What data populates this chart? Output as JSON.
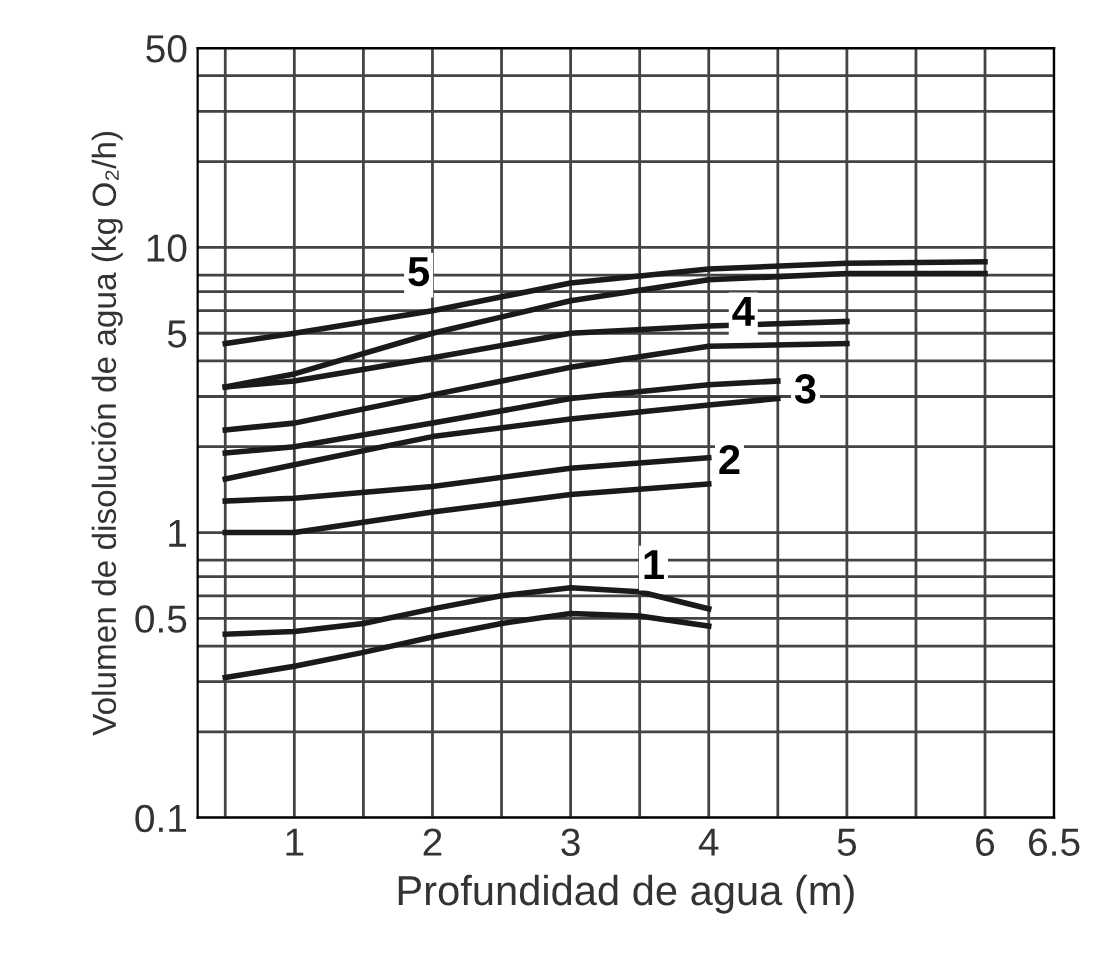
{
  "chart_data": {
    "type": "line",
    "xlabel": "Profundidad de agua (m)",
    "ylabel": "Volumen de disolución de agua (kg O₂/h)",
    "log": "y",
    "xlim": [
      0.3,
      6.5
    ],
    "ylim": [
      0.1,
      50
    ],
    "xticks": [
      {
        "value": 0.5,
        "label": null
      },
      1,
      {
        "value": 1.5,
        "label": null
      },
      2,
      {
        "value": 2.5,
        "label": null
      },
      3,
      {
        "value": 3.5,
        "label": null
      },
      4,
      {
        "value": 4.5,
        "label": null
      },
      5,
      {
        "value": 5.5,
        "label": null
      },
      6,
      6.5
    ],
    "yticks": [
      0.1,
      {
        "value": 0.2,
        "label": null
      },
      {
        "value": 0.3,
        "label": null
      },
      {
        "value": 0.4,
        "label": null
      },
      0.5,
      {
        "value": 0.6,
        "label": null
      },
      {
        "value": 0.7,
        "label": null
      },
      {
        "value": 0.8,
        "label": null
      },
      1,
      {
        "value": 2,
        "label": null
      },
      {
        "value": 3,
        "label": null
      },
      {
        "value": 4,
        "label": null
      },
      5,
      {
        "value": 6,
        "label": null
      },
      {
        "value": 7,
        "label": null
      },
      {
        "value": 8,
        "label": null
      },
      10,
      {
        "value": 20,
        "label": null
      },
      {
        "value": 30,
        "label": null
      },
      {
        "value": 40,
        "label": null
      },
      50
    ],
    "grid": true,
    "marker": "none",
    "line_style": "solid",
    "series": [
      {
        "color": "#1a1a1a",
        "x": [
          0.5,
          1,
          1.5,
          2,
          2.5,
          3,
          3.5,
          4
        ],
        "values": [
          0.31,
          0.34,
          0.38,
          0.43,
          0.48,
          0.52,
          0.51,
          0.47
        ]
      },
      {
        "color": "#1a1a1a",
        "x": [
          0.5,
          1,
          1.5,
          2,
          2.5,
          3,
          3.5,
          4
        ],
        "values": [
          0.44,
          0.45,
          0.48,
          0.54,
          0.6,
          0.64,
          0.62,
          0.54
        ]
      },
      {
        "color": "#1a1a1a",
        "x": [
          0.5,
          1,
          2,
          3,
          4
        ],
        "values": [
          1.0,
          1.0,
          1.18,
          1.36,
          1.48
        ]
      },
      {
        "color": "#1a1a1a",
        "x": [
          0.5,
          1,
          2,
          3,
          4
        ],
        "values": [
          1.29,
          1.32,
          1.45,
          1.68,
          1.83
        ]
      },
      {
        "color": "#1a1a1a",
        "x": [
          0.5,
          1,
          2,
          3,
          4,
          4.5
        ],
        "values": [
          1.54,
          1.73,
          2.17,
          2.5,
          2.8,
          2.95
        ]
      },
      {
        "color": "#1a1a1a",
        "x": [
          0.5,
          1,
          2,
          3,
          4,
          4.5
        ],
        "values": [
          1.9,
          2.0,
          2.42,
          2.95,
          3.3,
          3.4
        ]
      },
      {
        "color": "#1a1a1a",
        "x": [
          0.5,
          1,
          2,
          3,
          4,
          5
        ],
        "values": [
          2.29,
          2.42,
          3.04,
          3.8,
          4.5,
          4.6
        ]
      },
      {
        "color": "#1a1a1a",
        "x": [
          0.5,
          1,
          2,
          3,
          4,
          5
        ],
        "values": [
          3.24,
          3.4,
          4.1,
          5.0,
          5.3,
          5.5
        ]
      },
      {
        "color": "#1a1a1a",
        "x": [
          0.5,
          1,
          2,
          3,
          4,
          5,
          6
        ],
        "values": [
          3.24,
          3.6,
          5.0,
          6.5,
          7.7,
          8.1,
          8.1
        ]
      },
      {
        "color": "#1a1a1a",
        "x": [
          0.5,
          1,
          2,
          3,
          4,
          5,
          6
        ],
        "values": [
          4.6,
          5.0,
          6.0,
          7.5,
          8.4,
          8.8,
          8.9
        ]
      }
    ],
    "annotations": [
      {
        "text": "1",
        "x": 3.6,
        "y": 0.75
      },
      {
        "text": "2",
        "x": 4.15,
        "y": 1.75
      },
      {
        "text": "3",
        "x": 4.7,
        "y": 3.1
      },
      {
        "text": "4",
        "x": 4.25,
        "y": 5.8
      },
      {
        "text": "5",
        "x": 1.9,
        "y": 8.0
      }
    ]
  }
}
